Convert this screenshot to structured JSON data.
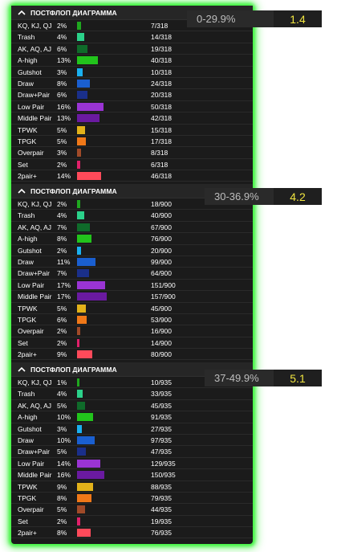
{
  "sections": [
    {
      "title": "ПОСТФЛОП ДИАГРАММА",
      "range": "0-29.9%",
      "multiplier": "1.4",
      "rows": [
        {
          "name": "KQ, KJ, QJ",
          "pct": "2%",
          "count": "7/318",
          "fraction": 0.022,
          "color": "#1fa81f"
        },
        {
          "name": "Trash",
          "pct": "4%",
          "count": "14/318",
          "fraction": 0.044,
          "color": "#2bd18a"
        },
        {
          "name": "AK, AQ, AJ",
          "pct": "6%",
          "count": "19/318",
          "fraction": 0.06,
          "color": "#0f6b2a"
        },
        {
          "name": "A-high",
          "pct": "13%",
          "count": "40/318",
          "fraction": 0.126,
          "color": "#22c41c"
        },
        {
          "name": "Gutshot",
          "pct": "3%",
          "count": "10/318",
          "fraction": 0.031,
          "color": "#1ab0f0"
        },
        {
          "name": "Draw",
          "pct": "8%",
          "count": "24/318",
          "fraction": 0.075,
          "color": "#1a5fd0"
        },
        {
          "name": "Draw+Pair",
          "pct": "6%",
          "count": "20/318",
          "fraction": 0.063,
          "color": "#1a2f8a"
        },
        {
          "name": "Low Pair",
          "pct": "16%",
          "count": "50/318",
          "fraction": 0.157,
          "color": "#9a34d4"
        },
        {
          "name": "Middle Pair",
          "pct": "13%",
          "count": "42/318",
          "fraction": 0.132,
          "color": "#6a1aa0"
        },
        {
          "name": "TPWK",
          "pct": "5%",
          "count": "15/318",
          "fraction": 0.047,
          "color": "#e2b21a"
        },
        {
          "name": "TPGK",
          "pct": "5%",
          "count": "17/318",
          "fraction": 0.053,
          "color": "#f07818"
        },
        {
          "name": "Overpair",
          "pct": "3%",
          "count": "8/318",
          "fraction": 0.025,
          "color": "#a04a28"
        },
        {
          "name": "Set",
          "pct": "2%",
          "count": "6/318",
          "fraction": 0.019,
          "color": "#e0206a"
        },
        {
          "name": "2pair+",
          "pct": "14%",
          "count": "46/318",
          "fraction": 0.145,
          "color": "#ff4a5a"
        }
      ]
    },
    {
      "title": "ПОСТФЛОП ДИАГРАММА",
      "range": "30-36.9%",
      "multiplier": "4.2",
      "rows": [
        {
          "name": "KQ, KJ, QJ",
          "pct": "2%",
          "count": "18/900",
          "fraction": 0.02,
          "color": "#1fa81f"
        },
        {
          "name": "Trash",
          "pct": "4%",
          "count": "40/900",
          "fraction": 0.044,
          "color": "#2bd18a"
        },
        {
          "name": "AK, AQ, AJ",
          "pct": "7%",
          "count": "67/900",
          "fraction": 0.074,
          "color": "#0f6b2a"
        },
        {
          "name": "A-high",
          "pct": "8%",
          "count": "76/900",
          "fraction": 0.084,
          "color": "#22c41c"
        },
        {
          "name": "Gutshot",
          "pct": "2%",
          "count": "20/900",
          "fraction": 0.022,
          "color": "#1ab0f0"
        },
        {
          "name": "Draw",
          "pct": "11%",
          "count": "99/900",
          "fraction": 0.11,
          "color": "#1a5fd0"
        },
        {
          "name": "Draw+Pair",
          "pct": "7%",
          "count": "64/900",
          "fraction": 0.071,
          "color": "#1a2f8a"
        },
        {
          "name": "Low Pair",
          "pct": "17%",
          "count": "151/900",
          "fraction": 0.168,
          "color": "#9a34d4"
        },
        {
          "name": "Middle Pair",
          "pct": "17%",
          "count": "157/900",
          "fraction": 0.174,
          "color": "#6a1aa0"
        },
        {
          "name": "TPWK",
          "pct": "5%",
          "count": "45/900",
          "fraction": 0.05,
          "color": "#e2b21a"
        },
        {
          "name": "TPGK",
          "pct": "6%",
          "count": "53/900",
          "fraction": 0.059,
          "color": "#f07818"
        },
        {
          "name": "Overpair",
          "pct": "2%",
          "count": "16/900",
          "fraction": 0.018,
          "color": "#a04a28"
        },
        {
          "name": "Set",
          "pct": "2%",
          "count": "14/900",
          "fraction": 0.016,
          "color": "#e0206a"
        },
        {
          "name": "2pair+",
          "pct": "9%",
          "count": "80/900",
          "fraction": 0.089,
          "color": "#ff4a5a"
        }
      ]
    },
    {
      "title": "ПОСТФЛОП ДИАГРАММА",
      "range": "37-49.9%",
      "multiplier": "5.1",
      "rows": [
        {
          "name": "KQ, KJ, QJ",
          "pct": "1%",
          "count": "10/935",
          "fraction": 0.011,
          "color": "#1fa81f"
        },
        {
          "name": "Trash",
          "pct": "4%",
          "count": "33/935",
          "fraction": 0.035,
          "color": "#2bd18a"
        },
        {
          "name": "AK, AQ, AJ",
          "pct": "5%",
          "count": "45/935",
          "fraction": 0.048,
          "color": "#0f6b2a"
        },
        {
          "name": "A-high",
          "pct": "10%",
          "count": "91/935",
          "fraction": 0.097,
          "color": "#22c41c"
        },
        {
          "name": "Gutshot",
          "pct": "3%",
          "count": "27/935",
          "fraction": 0.029,
          "color": "#1ab0f0"
        },
        {
          "name": "Draw",
          "pct": "10%",
          "count": "97/935",
          "fraction": 0.104,
          "color": "#1a5fd0"
        },
        {
          "name": "Draw+Pair",
          "pct": "5%",
          "count": "47/935",
          "fraction": 0.05,
          "color": "#1a2f8a"
        },
        {
          "name": "Low Pair",
          "pct": "14%",
          "count": "129/935",
          "fraction": 0.138,
          "color": "#9a34d4"
        },
        {
          "name": "Middle Pair",
          "pct": "16%",
          "count": "150/935",
          "fraction": 0.16,
          "color": "#6a1aa0"
        },
        {
          "name": "TPWK",
          "pct": "9%",
          "count": "88/935",
          "fraction": 0.094,
          "color": "#e2b21a"
        },
        {
          "name": "TPGK",
          "pct": "8%",
          "count": "79/935",
          "fraction": 0.084,
          "color": "#f07818"
        },
        {
          "name": "Overpair",
          "pct": "5%",
          "count": "44/935",
          "fraction": 0.047,
          "color": "#a04a28"
        },
        {
          "name": "Set",
          "pct": "2%",
          "count": "19/935",
          "fraction": 0.02,
          "color": "#e0206a"
        },
        {
          "name": "2pair+",
          "pct": "8%",
          "count": "76/935",
          "fraction": 0.081,
          "color": "#ff4a5a"
        }
      ]
    }
  ],
  "icons": {
    "collapse": "chevron-up-icon"
  },
  "colors": {
    "glow": "#3ef53e",
    "multiplier": "#f2e640",
    "panel": "#1b1b1b"
  }
}
